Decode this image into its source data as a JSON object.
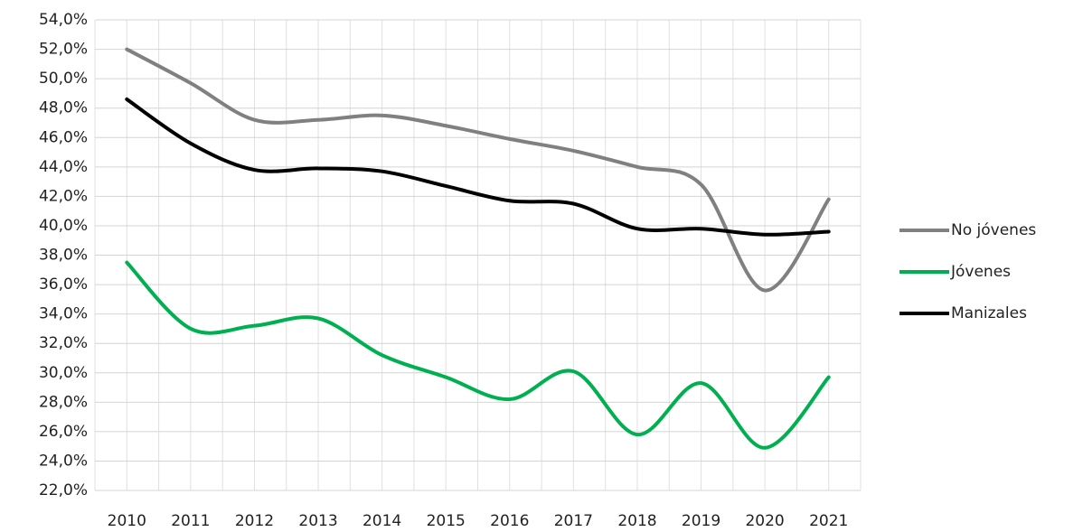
{
  "chart_data": {
    "type": "line",
    "categories": [
      "2010",
      "2011",
      "2012",
      "2013",
      "2014",
      "2015",
      "2016",
      "2017",
      "2018",
      "2019",
      "2020",
      "2021"
    ],
    "series": [
      {
        "name": "No jóvenes",
        "color": "#808080",
        "values": [
          52.0,
          49.7,
          47.2,
          47.2,
          47.5,
          46.8,
          45.9,
          45.1,
          44.0,
          42.8,
          35.6,
          41.8
        ]
      },
      {
        "name": "Jóvenes",
        "color": "#00b050",
        "values": [
          37.5,
          33.0,
          33.2,
          33.7,
          31.2,
          29.7,
          28.2,
          30.1,
          25.8,
          29.3,
          24.9,
          29.7
        ]
      },
      {
        "name": "Manizales",
        "color": "#000000",
        "values": [
          48.6,
          45.6,
          43.8,
          43.9,
          43.7,
          42.7,
          41.7,
          41.5,
          39.8,
          39.8,
          39.4,
          39.6
        ]
      }
    ],
    "ylim": [
      22,
      54
    ],
    "yticks": [
      {
        "value": 22,
        "label": "22,0%"
      },
      {
        "value": 24,
        "label": "24,0%"
      },
      {
        "value": 26,
        "label": "26,0%"
      },
      {
        "value": 28,
        "label": "28,0%"
      },
      {
        "value": 30,
        "label": "30,0%"
      },
      {
        "value": 32,
        "label": "32,0%"
      },
      {
        "value": 34,
        "label": "34,0%"
      },
      {
        "value": 36,
        "label": "36,0%"
      },
      {
        "value": 38,
        "label": "38,0%"
      },
      {
        "value": 40,
        "label": "40,0%"
      },
      {
        "value": 42,
        "label": "42,0%"
      },
      {
        "value": 44,
        "label": "44,0%"
      },
      {
        "value": 46,
        "label": "46,0%"
      },
      {
        "value": 48,
        "label": "48,0%"
      },
      {
        "value": 50,
        "label": "50,0%"
      },
      {
        "value": 52,
        "label": "52,0%"
      },
      {
        "value": 54,
        "label": "54,0%"
      }
    ],
    "grid": true,
    "legend": "right"
  }
}
